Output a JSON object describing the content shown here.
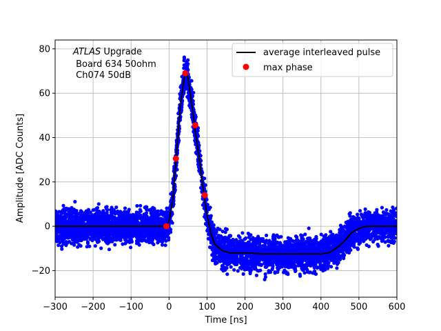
{
  "chart_data": {
    "type": "scatter",
    "xlabel": "Time [ns]",
    "ylabel": "Amplitude [ADC Counts]",
    "xlim": [
      -300,
      600
    ],
    "ylim": [
      -32,
      84
    ],
    "xticks": [
      -300,
      -200,
      -100,
      0,
      100,
      200,
      300,
      400,
      500,
      600
    ],
    "yticks": [
      -20,
      0,
      20,
      40,
      60,
      80
    ],
    "grid": true,
    "legend_position": "top-right",
    "annotation": {
      "line1_italic": "ATLAS",
      "line1_rest": " Upgrade",
      "line2": " Board 634 50ohm",
      "line3": " Ch074 50dB"
    },
    "series": [
      {
        "name": "",
        "kind": "scatter-band",
        "color": "#0000ff",
        "noise_spread_adc": 7,
        "x": [
          -300,
          -250,
          -200,
          -150,
          -100,
          -50,
          -10,
          0,
          10,
          20,
          30,
          40,
          45,
          50,
          60,
          70,
          80,
          90,
          100,
          110,
          120,
          140,
          160,
          200,
          250,
          300,
          350,
          400,
          420,
          440,
          460,
          480,
          500,
          520,
          550,
          600
        ],
        "y": [
          0,
          0,
          0,
          0,
          0,
          0,
          0,
          2,
          12,
          34,
          55,
          67,
          69,
          67,
          55,
          42,
          30,
          17,
          5,
          -3,
          -8,
          -11,
          -12,
          -12,
          -12.5,
          -12.5,
          -12.5,
          -12.5,
          -12,
          -10,
          -7,
          -3,
          -1,
          0,
          0,
          0
        ]
      },
      {
        "name": "average interleaved pulse",
        "kind": "line",
        "color": "#000000",
        "x": [
          -300,
          -250,
          -200,
          -150,
          -100,
          -50,
          -10,
          0,
          10,
          20,
          30,
          40,
          45,
          50,
          60,
          70,
          80,
          90,
          100,
          110,
          120,
          140,
          160,
          200,
          250,
          300,
          350,
          400,
          420,
          440,
          460,
          480,
          500,
          520,
          550,
          600
        ],
        "y": [
          0,
          0,
          0,
          0,
          0,
          0,
          0,
          2,
          12,
          34,
          55,
          67,
          69,
          67,
          55,
          42,
          30,
          17,
          5,
          -3,
          -8,
          -11,
          -12,
          -12,
          -12.5,
          -12.5,
          -12.5,
          -12.5,
          -12,
          -10,
          -7,
          -3,
          -1,
          0,
          0,
          0
        ]
      },
      {
        "name": "max phase",
        "kind": "points",
        "color": "#ff0000",
        "x": [
          -7,
          18,
          43,
          69,
          94
        ],
        "y": [
          0,
          30.5,
          69,
          45.5,
          14
        ]
      }
    ]
  }
}
